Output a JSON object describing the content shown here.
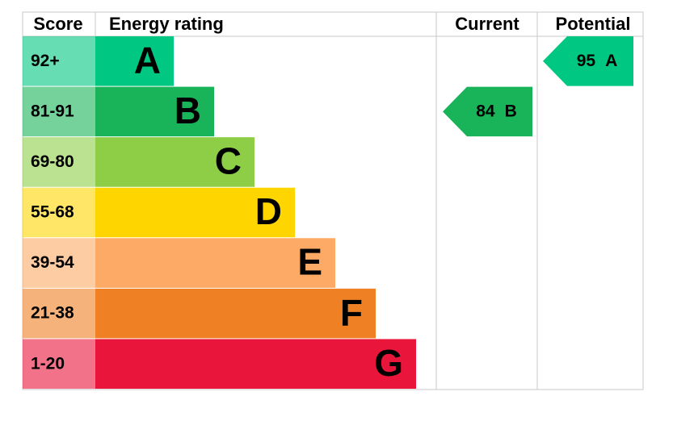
{
  "chart_data": {
    "type": "epc",
    "headers": {
      "score": "Score",
      "rating": "Energy rating",
      "current": "Current",
      "potential": "Potential"
    },
    "bands": [
      {
        "score": "92+",
        "letter": "A",
        "color": "#00c781"
      },
      {
        "score": "81-91",
        "letter": "B",
        "color": "#19b459"
      },
      {
        "score": "69-80",
        "letter": "C",
        "color": "#8dce46"
      },
      {
        "score": "55-68",
        "letter": "D",
        "color": "#ffd500"
      },
      {
        "score": "39-54",
        "letter": "E",
        "color": "#fcaa65"
      },
      {
        "score": "21-38",
        "letter": "F",
        "color": "#ef8023"
      },
      {
        "score": "1-20",
        "letter": "G",
        "color": "#e9153b"
      }
    ],
    "current": {
      "value": 84,
      "letter": "B"
    },
    "potential": {
      "value": 95,
      "letter": "A"
    }
  }
}
